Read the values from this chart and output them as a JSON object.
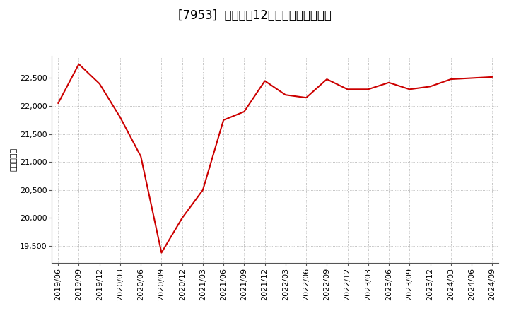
{
  "title": "[7953]  売上高の12か月移動合計の推移",
  "ylabel": "（百万円）",
  "line_color": "#cc0000",
  "background_color": "#ffffff",
  "plot_bg_color": "#ffffff",
  "grid_color": "#999999",
  "dates": [
    "2019/06",
    "2019/09",
    "2019/12",
    "2020/03",
    "2020/06",
    "2020/09",
    "2020/12",
    "2021/03",
    "2021/06",
    "2021/09",
    "2021/12",
    "2022/03",
    "2022/06",
    "2022/09",
    "2022/12",
    "2023/03",
    "2023/06",
    "2023/09",
    "2023/12",
    "2024/03",
    "2024/06",
    "2024/09"
  ],
  "values": [
    22050,
    22750,
    22400,
    21800,
    21100,
    19380,
    20000,
    20500,
    21750,
    21900,
    22450,
    22200,
    22150,
    22480,
    22300,
    22300,
    22420,
    22300,
    22350,
    22480,
    22500,
    22520
  ],
  "yticks": [
    19500,
    20000,
    20500,
    21000,
    21500,
    22000,
    22500
  ],
  "ylim": [
    19200,
    22900
  ],
  "title_fontsize": 12,
  "tick_fontsize": 8,
  "ylabel_fontsize": 8
}
